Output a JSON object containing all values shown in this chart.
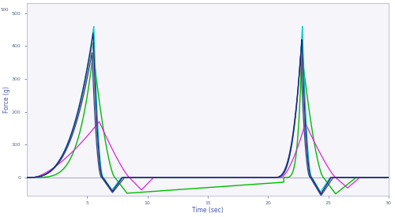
{
  "xlabel": "Time (sec)",
  "ylabel": "Force (g)",
  "xlim": [
    0,
    30
  ],
  "ylim": [
    -55,
    530
  ],
  "yticks": [
    0,
    100,
    200,
    300,
    400,
    500
  ],
  "xtick_positions": [
    5,
    10,
    15,
    20,
    25,
    30
  ],
  "xtick_labels": [
    "5",
    "10",
    "15",
    "20",
    "25",
    "30"
  ],
  "background_color": "#ffffff",
  "plot_bg": "#f5f5fa",
  "colors": {
    "navy": "#22227a",
    "cyan": "#00cccc",
    "teal": "#44aaaa",
    "gray": "#999999",
    "green": "#00bb00",
    "magenta": "#dd22dd",
    "darkblue": "#334488"
  },
  "p1x": 5.5,
  "p1y_main": 440,
  "p1y_cyan": 460,
  "p1y_green": 380,
  "p1y_magenta": 170,
  "p2x": 22.8,
  "p2y_main": 420,
  "p2y_cyan": 460,
  "p2y_green": 380,
  "p2y_magenta": 165
}
